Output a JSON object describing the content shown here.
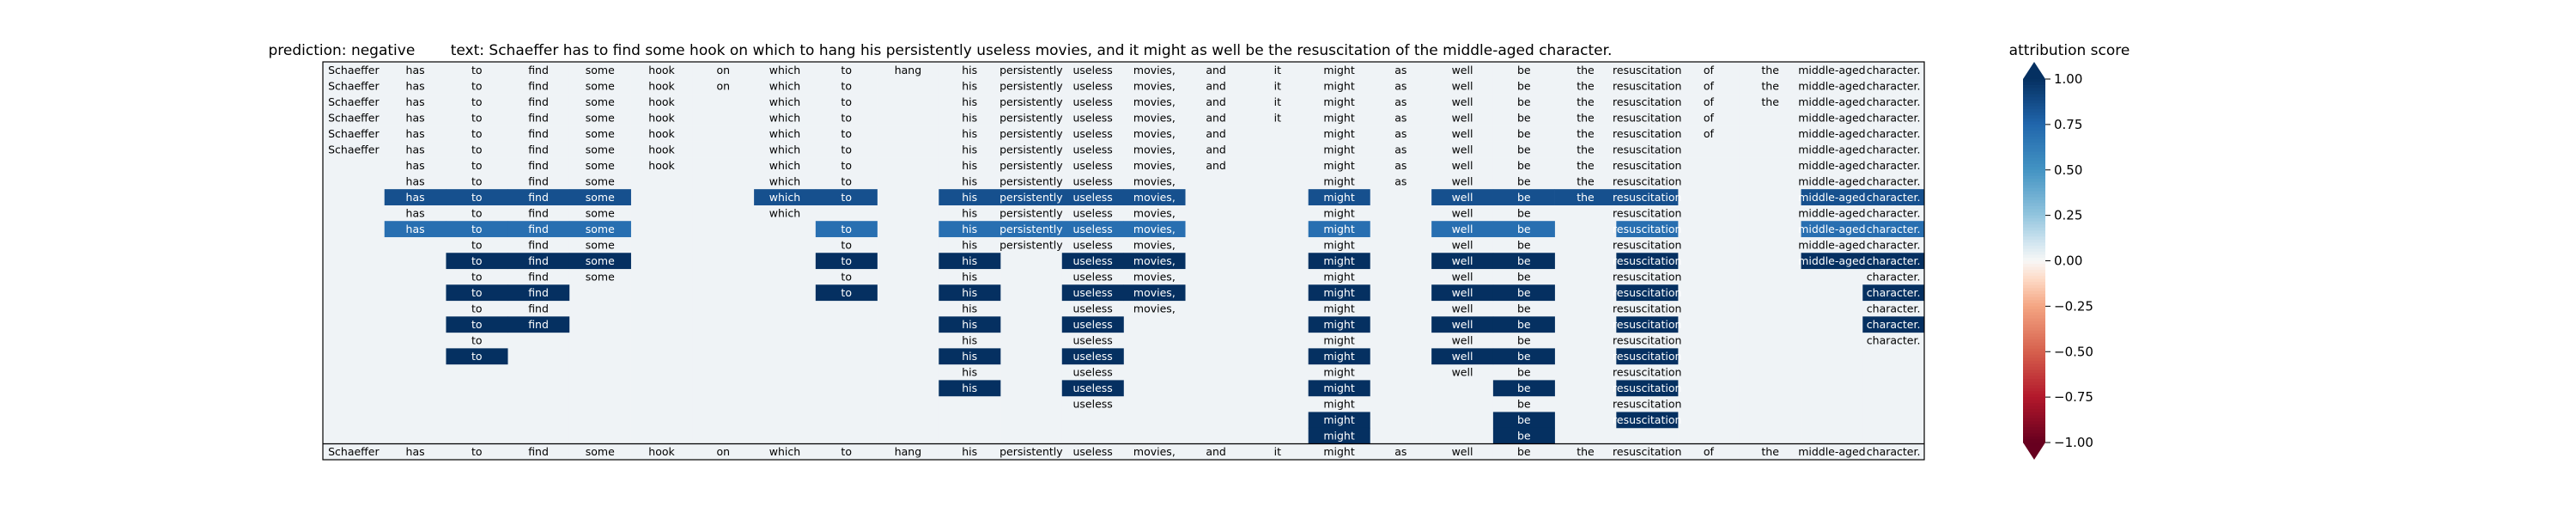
{
  "chart_data": {
    "type": "heatmap",
    "title": {
      "prediction_label": "prediction:",
      "prediction_value": "negative",
      "text_label": "text:",
      "text_value": "Schaeffer has to find some hook on which to hang his persistently useless movies, and it might as well be the resuscitation of the middle-aged character."
    },
    "tokens": [
      "Schaeffer",
      "has",
      "to",
      "find",
      "some",
      "hook",
      "on",
      "which",
      "to",
      "hang",
      "his",
      "persistently",
      "useless",
      "movies,",
      "and",
      "it",
      "might",
      "as",
      "well",
      "be",
      "the",
      "resuscitation",
      "of",
      "the",
      "middle-aged",
      "character."
    ],
    "rows": [
      {
        "present": [
          0,
          1,
          2,
          3,
          4,
          5,
          6,
          7,
          8,
          9,
          10,
          11,
          12,
          13,
          14,
          15,
          16,
          17,
          18,
          19,
          20,
          21,
          22,
          23,
          24,
          25
        ],
        "scores": []
      },
      {
        "present": [
          0,
          1,
          2,
          3,
          4,
          5,
          6,
          7,
          8,
          10,
          11,
          12,
          13,
          14,
          15,
          16,
          17,
          18,
          19,
          20,
          21,
          22,
          23,
          24,
          25
        ],
        "scores": []
      },
      {
        "present": [
          0,
          1,
          2,
          3,
          4,
          5,
          7,
          8,
          10,
          11,
          12,
          13,
          14,
          15,
          16,
          17,
          18,
          19,
          20,
          21,
          22,
          23,
          24,
          25
        ],
        "scores": []
      },
      {
        "present": [
          0,
          1,
          2,
          3,
          4,
          5,
          7,
          8,
          10,
          11,
          12,
          13,
          14,
          15,
          16,
          17,
          18,
          19,
          20,
          21,
          22,
          24,
          25
        ],
        "scores": []
      },
      {
        "present": [
          0,
          1,
          2,
          3,
          4,
          5,
          7,
          8,
          10,
          11,
          12,
          13,
          14,
          16,
          17,
          18,
          19,
          20,
          21,
          22,
          24,
          25
        ],
        "scores": []
      },
      {
        "present": [
          0,
          1,
          2,
          3,
          4,
          5,
          7,
          8,
          10,
          11,
          12,
          13,
          14,
          16,
          17,
          18,
          19,
          20,
          21,
          24,
          25
        ],
        "scores": []
      },
      {
        "present": [
          1,
          2,
          3,
          4,
          5,
          7,
          8,
          10,
          11,
          12,
          13,
          14,
          16,
          17,
          18,
          19,
          20,
          21,
          24,
          25
        ],
        "scores": []
      },
      {
        "present": [
          1,
          2,
          3,
          4,
          7,
          8,
          10,
          11,
          12,
          13,
          16,
          17,
          18,
          19,
          20,
          21,
          24,
          25
        ],
        "scores": []
      },
      {
        "present": [
          1,
          2,
          3,
          4,
          7,
          8,
          10,
          11,
          12,
          13,
          16,
          18,
          19,
          20,
          21,
          24,
          25
        ],
        "scores": [
          [
            1,
            0.85
          ],
          [
            2,
            0.85
          ],
          [
            3,
            0.85
          ],
          [
            4,
            0.85
          ],
          [
            7,
            0.85
          ],
          [
            8,
            0.85
          ],
          [
            10,
            0.85
          ],
          [
            11,
            0.85
          ],
          [
            12,
            0.85
          ],
          [
            13,
            0.85
          ],
          [
            16,
            0.85
          ],
          [
            18,
            0.85
          ],
          [
            19,
            0.85
          ],
          [
            20,
            0.85
          ],
          [
            21,
            0.85
          ],
          [
            24,
            0.85
          ],
          [
            25,
            0.85
          ]
        ]
      },
      {
        "present": [
          1,
          2,
          3,
          4,
          7,
          10,
          11,
          12,
          13,
          16,
          18,
          19,
          21,
          24,
          25
        ],
        "scores": []
      },
      {
        "present": [
          1,
          2,
          3,
          4,
          8,
          10,
          11,
          12,
          13,
          16,
          18,
          19,
          21,
          24,
          25
        ],
        "scores": [
          [
            1,
            0.7
          ],
          [
            2,
            0.7
          ],
          [
            3,
            0.7
          ],
          [
            4,
            0.7
          ],
          [
            8,
            0.7
          ],
          [
            10,
            0.7
          ],
          [
            11,
            0.7
          ],
          [
            12,
            0.7
          ],
          [
            13,
            0.7
          ],
          [
            16,
            0.7
          ],
          [
            18,
            0.7
          ],
          [
            19,
            0.7
          ],
          [
            21,
            0.7
          ],
          [
            24,
            0.7
          ],
          [
            25,
            0.7
          ]
        ]
      },
      {
        "present": [
          2,
          3,
          4,
          8,
          10,
          11,
          12,
          13,
          16,
          18,
          19,
          21,
          24,
          25
        ],
        "scores": []
      },
      {
        "present": [
          2,
          3,
          4,
          8,
          10,
          12,
          13,
          16,
          18,
          19,
          21,
          24,
          25
        ],
        "scores": [
          [
            2,
            1.0
          ],
          [
            3,
            1.0
          ],
          [
            4,
            1.0
          ],
          [
            8,
            1.0
          ],
          [
            10,
            1.0
          ],
          [
            12,
            1.0
          ],
          [
            13,
            1.0
          ],
          [
            16,
            1.0
          ],
          [
            18,
            1.0
          ],
          [
            19,
            1.0
          ],
          [
            21,
            1.0
          ],
          [
            24,
            1.0
          ],
          [
            25,
            1.0
          ]
        ]
      },
      {
        "present": [
          2,
          3,
          4,
          8,
          10,
          12,
          13,
          16,
          18,
          19,
          21,
          25
        ],
        "scores": []
      },
      {
        "present": [
          2,
          3,
          8,
          10,
          12,
          13,
          16,
          18,
          19,
          21,
          25
        ],
        "scores": [
          [
            2,
            1.0
          ],
          [
            3,
            1.0
          ],
          [
            8,
            1.0
          ],
          [
            10,
            1.0
          ],
          [
            12,
            1.0
          ],
          [
            13,
            1.0
          ],
          [
            16,
            1.0
          ],
          [
            18,
            1.0
          ],
          [
            19,
            1.0
          ],
          [
            21,
            1.0
          ],
          [
            25,
            1.0
          ]
        ]
      },
      {
        "present": [
          2,
          3,
          10,
          12,
          13,
          16,
          18,
          19,
          21,
          25
        ],
        "scores": []
      },
      {
        "present": [
          2,
          3,
          10,
          12,
          16,
          18,
          19,
          21,
          25
        ],
        "scores": [
          [
            2,
            1.0
          ],
          [
            3,
            1.0
          ],
          [
            10,
            1.0
          ],
          [
            12,
            1.0
          ],
          [
            16,
            1.0
          ],
          [
            18,
            1.0
          ],
          [
            19,
            1.0
          ],
          [
            21,
            1.0
          ],
          [
            25,
            1.0
          ]
        ]
      },
      {
        "present": [
          2,
          10,
          12,
          16,
          18,
          19,
          21,
          25
        ],
        "scores": []
      },
      {
        "present": [
          2,
          10,
          12,
          16,
          18,
          19,
          21
        ],
        "scores": [
          [
            2,
            1.0
          ],
          [
            10,
            1.0
          ],
          [
            12,
            1.0
          ],
          [
            16,
            1.0
          ],
          [
            18,
            1.0
          ],
          [
            19,
            1.0
          ],
          [
            21,
            1.0
          ]
        ]
      },
      {
        "present": [
          10,
          12,
          16,
          18,
          19,
          21
        ],
        "scores": []
      },
      {
        "present": [
          10,
          12,
          16,
          19,
          21
        ],
        "scores": [
          [
            10,
            1.0
          ],
          [
            12,
            1.0
          ],
          [
            16,
            1.0
          ],
          [
            19,
            1.0
          ],
          [
            21,
            1.0
          ]
        ]
      },
      {
        "present": [
          12,
          16,
          19,
          21
        ],
        "scores": []
      },
      {
        "present": [
          16,
          19,
          21
        ],
        "scores": [
          [
            16,
            1.0
          ],
          [
            19,
            1.0
          ],
          [
            21,
            1.0
          ]
        ]
      },
      {
        "present": [
          16,
          19
        ],
        "scores": [
          [
            16,
            1.0
          ],
          [
            19,
            1.0
          ]
        ]
      },
      {
        "present": [
          0,
          1,
          2,
          3,
          4,
          5,
          6,
          7,
          8,
          9,
          10,
          11,
          12,
          13,
          14,
          15,
          16,
          17,
          18,
          19,
          20,
          21,
          22,
          23,
          24,
          25
        ],
        "scores": []
      }
    ],
    "colorbar": {
      "label": "attribution score",
      "ticks": [
        "1.00",
        "0.75",
        "0.50",
        "0.25",
        "0.00",
        "−0.25",
        "−0.50",
        "−0.75",
        "−1.00"
      ],
      "values": [
        1.0,
        0.75,
        0.5,
        0.25,
        0.0,
        -0.25,
        -0.5,
        -0.75,
        -1.0
      ],
      "range": [
        -1,
        1
      ],
      "colormap": "RdBu"
    },
    "background_score": 0.02
  }
}
